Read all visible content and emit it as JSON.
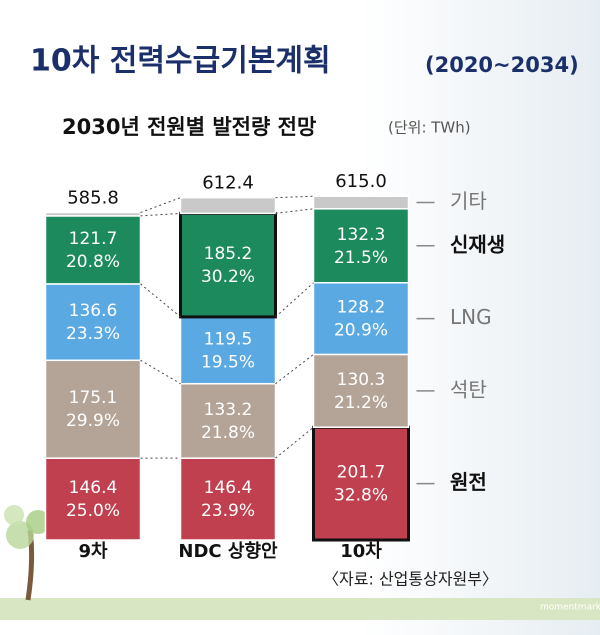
{
  "title": "10차 전력수급기본계획",
  "title_period": "(2020~2034)",
  "chart_data": {
    "type": "stacked_bar",
    "title": "2030년 전원별 발전량 전망",
    "unit": "(단위: TWh)",
    "categories": [
      "9차",
      "NDC 상향안",
      "10차"
    ],
    "totals": [
      585.8,
      612.4,
      615
    ],
    "total_labels": [
      "585.8",
      "612.4",
      "615.0"
    ],
    "series": [
      {
        "name": "원전",
        "color": "#c1404f",
        "text_color": "#ffffff",
        "values": [
          146.4,
          146.4,
          201.7
        ],
        "share_labels": [
          "25.0%",
          "23.9%",
          "32.8%"
        ],
        "highlight": [
          false,
          false,
          true
        ]
      },
      {
        "name": "석탄",
        "color": "#b4a497",
        "text_color": "#ffffff",
        "values": [
          175.1,
          133.2,
          130.3
        ],
        "share_labels": [
          "29.9%",
          "21.8%",
          "21.2%"
        ],
        "highlight": [
          false,
          false,
          false
        ]
      },
      {
        "name": "LNG",
        "color": "#5aa9e2",
        "text_color": "#ffffff",
        "values": [
          136.6,
          119.5,
          128.2
        ],
        "share_labels": [
          "23.3%",
          "19.5%",
          "20.9%"
        ],
        "highlight": [
          false,
          false,
          false
        ]
      },
      {
        "name": "신재생",
        "color": "#1c8a5c",
        "text_color": "#ffffff",
        "values": [
          121.7,
          185.2,
          132.3
        ],
        "share_labels": [
          "20.8%",
          "30.2%",
          "21.5%"
        ],
        "highlight": [
          false,
          true,
          false
        ]
      },
      {
        "name": "기타",
        "color": "#c9c9c9",
        "text_color": "#333333",
        "values": [
          6.0,
          28.1,
          22.5
        ],
        "highlight": [
          false,
          false,
          false
        ]
      }
    ]
  },
  "source": "〈자료: 산업통상자원부〉",
  "watermark": "momentmark"
}
